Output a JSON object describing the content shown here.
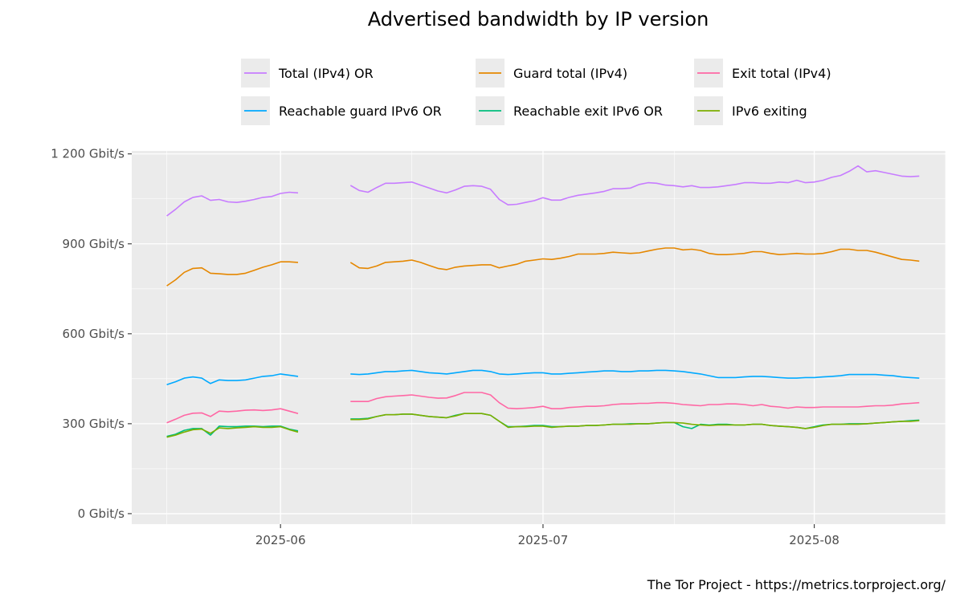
{
  "chart_data": {
    "type": "line",
    "title": "Advertised bandwidth by IP version",
    "caption": "The Tor Project - https://metrics.torproject.org/",
    "xlabel": "",
    "ylabel": "",
    "ylim": [
      -35,
      1210
    ],
    "xlim": [
      "2025-05-15",
      "2025-08-16"
    ],
    "y_ticks": [
      {
        "value": 0,
        "label": "0 Gbit/s"
      },
      {
        "value": 300,
        "label": "300 Gbit/s"
      },
      {
        "value": 600,
        "label": "600 Gbit/s"
      },
      {
        "value": 900,
        "label": "900 Gbit/s"
      },
      {
        "value": 1200,
        "label": "1 200 Gbit/s"
      }
    ],
    "x_ticks": [
      {
        "value": "2025-06-01",
        "label": "2025-06"
      },
      {
        "value": "2025-07-01",
        "label": "2025-07"
      },
      {
        "value": "2025-08-01",
        "label": "2025-08"
      }
    ],
    "x_minor_ticks": [
      "2025-05-19",
      "2025-06-16",
      "2025-07-16",
      "2025-08-16"
    ],
    "grid": true,
    "legend_position": "top",
    "segments": [
      {
        "start": "2025-05-19",
        "days": 15
      },
      {
        "start": "2025-06-09",
        "days": 65
      }
    ],
    "series": [
      {
        "name": "Total (IPv4) OR",
        "color": "#C77CFF",
        "segments": [
          [
            993,
            1015,
            1040,
            1055,
            1060,
            1045,
            1048,
            1040,
            1038,
            1042,
            1048,
            1055,
            1058,
            1068,
            1072,
            1070
          ],
          [
            1095,
            1078,
            1072,
            1088,
            1102,
            1102,
            1104,
            1106,
            1096,
            1086,
            1076,
            1070,
            1080,
            1092,
            1094,
            1092,
            1082,
            1048,
            1030,
            1032,
            1038,
            1044,
            1054,
            1046,
            1046,
            1055,
            1062,
            1066,
            1070,
            1075,
            1084,
            1084,
            1086,
            1098,
            1104,
            1102,
            1096,
            1094,
            1090,
            1094,
            1088,
            1088,
            1090,
            1094,
            1098,
            1104,
            1104,
            1102,
            1102,
            1106,
            1104,
            1112,
            1104,
            1106,
            1112,
            1122,
            1128,
            1142,
            1160,
            1140,
            1144,
            1138,
            1132,
            1126,
            1124,
            1126
          ]
        ]
      },
      {
        "name": "Guard total (IPv4)",
        "color": "#E58700",
        "segments": [
          [
            760,
            780,
            805,
            818,
            820,
            802,
            800,
            798,
            798,
            802,
            812,
            822,
            830,
            840,
            840,
            838
          ],
          [
            838,
            820,
            818,
            826,
            838,
            840,
            842,
            846,
            838,
            828,
            818,
            814,
            822,
            826,
            828,
            830,
            830,
            820,
            826,
            832,
            842,
            846,
            850,
            848,
            852,
            858,
            866,
            866,
            866,
            868,
            872,
            870,
            868,
            870,
            876,
            882,
            886,
            886,
            880,
            882,
            878,
            868,
            864,
            864,
            866,
            868,
            874,
            874,
            868,
            864,
            866,
            868,
            866,
            866,
            868,
            874,
            882,
            882,
            878,
            878,
            872,
            864,
            856,
            848,
            846,
            842
          ]
        ]
      },
      {
        "name": "Exit total (IPv4)",
        "color": "#FF67A4",
        "segments": [
          [
            303,
            315,
            328,
            335,
            336,
            324,
            342,
            340,
            342,
            345,
            346,
            344,
            346,
            350,
            342,
            334
          ],
          [
            374,
            374,
            374,
            384,
            390,
            392,
            394,
            396,
            392,
            388,
            385,
            386,
            394,
            404,
            404,
            404,
            396,
            370,
            352,
            350,
            352,
            354,
            358,
            350,
            350,
            354,
            356,
            358,
            358,
            360,
            364,
            366,
            366,
            368,
            368,
            370,
            370,
            368,
            364,
            362,
            360,
            364,
            364,
            366,
            366,
            364,
            360,
            364,
            358,
            356,
            352,
            356,
            354,
            354,
            356,
            356,
            356,
            356,
            356,
            358,
            360,
            360,
            362,
            366,
            368,
            370
          ]
        ]
      },
      {
        "name": "Reachable guard IPv6 OR",
        "color": "#00A9FF",
        "segments": [
          [
            430,
            440,
            452,
            456,
            452,
            434,
            446,
            444,
            444,
            446,
            452,
            458,
            460,
            466,
            462,
            458
          ],
          [
            466,
            464,
            466,
            470,
            474,
            474,
            476,
            478,
            474,
            470,
            468,
            466,
            470,
            474,
            478,
            478,
            474,
            466,
            464,
            466,
            468,
            470,
            470,
            466,
            466,
            468,
            470,
            472,
            474,
            476,
            476,
            474,
            474,
            476,
            476,
            478,
            478,
            476,
            474,
            470,
            466,
            460,
            454,
            454,
            454,
            456,
            458,
            458,
            456,
            454,
            452,
            452,
            454,
            454,
            456,
            458,
            460,
            464,
            464,
            464,
            464,
            462,
            460,
            456,
            454,
            452
          ]
        ]
      },
      {
        "name": "Reachable exit IPv6 OR",
        "color": "#00BF7D",
        "segments": [
          [
            258,
            265,
            278,
            284,
            284,
            262,
            292,
            290,
            290,
            292,
            292,
            290,
            292,
            292,
            282,
            276
          ],
          [
            316,
            316,
            318,
            324,
            330,
            330,
            332,
            332,
            328,
            324,
            322,
            320,
            328,
            334,
            334,
            334,
            328,
            308,
            290,
            290,
            292,
            294,
            294,
            290,
            290,
            292,
            292,
            294,
            294,
            296,
            298,
            298,
            300,
            300,
            300,
            302,
            304,
            304,
            290,
            284,
            298,
            296,
            298,
            298,
            296,
            296,
            298,
            298,
            294,
            292,
            290,
            288,
            284,
            290,
            296,
            298,
            298,
            300,
            300,
            300,
            302,
            304,
            306,
            308,
            310,
            312
          ]
        ]
      },
      {
        "name": "IPv6 exiting",
        "color": "#7CAE00",
        "segments": [
          [
            255,
            262,
            272,
            280,
            282,
            268,
            286,
            284,
            286,
            288,
            290,
            288,
            288,
            290,
            280,
            272
          ],
          [
            314,
            314,
            316,
            324,
            330,
            330,
            332,
            332,
            328,
            324,
            322,
            320,
            326,
            334,
            334,
            334,
            328,
            308,
            288,
            290,
            290,
            292,
            292,
            288,
            290,
            292,
            292,
            294,
            294,
            296,
            298,
            298,
            298,
            300,
            300,
            302,
            304,
            304,
            302,
            298,
            296,
            294,
            296,
            296,
            296,
            296,
            298,
            298,
            294,
            292,
            290,
            288,
            284,
            288,
            294,
            298,
            298,
            298,
            298,
            300,
            302,
            304,
            306,
            308,
            308,
            310
          ]
        ]
      }
    ]
  }
}
